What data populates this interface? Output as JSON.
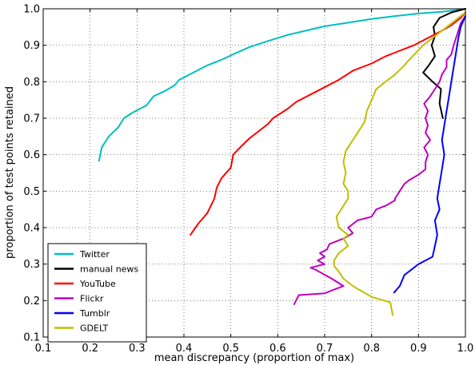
{
  "chart_data": {
    "type": "line",
    "title": "",
    "xlabel": "mean discrepancy (proportion of max)",
    "ylabel": "proportion of test points retained",
    "xlim": [
      0.1,
      1.0
    ],
    "ylim": [
      0.1,
      1.0
    ],
    "xticks": [
      0.1,
      0.2,
      0.3,
      0.4,
      0.5,
      0.6,
      0.7,
      0.8,
      0.9,
      1.0
    ],
    "yticks": [
      0.1,
      0.2,
      0.3,
      0.4,
      0.5,
      0.6,
      0.7,
      0.8,
      0.9,
      1.0
    ],
    "xtick_labels": [
      "0.1",
      "0.2",
      "0.3",
      "0.4",
      "0.5",
      "0.6",
      "0.7",
      "0.8",
      "0.9",
      "1.0"
    ],
    "ytick_labels": [
      "0.1",
      "0.2",
      "0.3",
      "0.4",
      "0.5",
      "0.6",
      "0.7",
      "0.8",
      "0.9",
      "1.0"
    ],
    "grid": true,
    "legend_position": "lower-left",
    "series": [
      {
        "name": "Twitter",
        "color": "#00bfbf",
        "points": [
          [
            0.219,
            0.583
          ],
          [
            0.225,
            0.62
          ],
          [
            0.24,
            0.65
          ],
          [
            0.26,
            0.675
          ],
          [
            0.272,
            0.7
          ],
          [
            0.29,
            0.715
          ],
          [
            0.32,
            0.735
          ],
          [
            0.335,
            0.76
          ],
          [
            0.36,
            0.775
          ],
          [
            0.38,
            0.79
          ],
          [
            0.39,
            0.805
          ],
          [
            0.42,
            0.825
          ],
          [
            0.45,
            0.845
          ],
          [
            0.48,
            0.86
          ],
          [
            0.51,
            0.878
          ],
          [
            0.54,
            0.895
          ],
          [
            0.58,
            0.912
          ],
          [
            0.62,
            0.928
          ],
          [
            0.66,
            0.94
          ],
          [
            0.7,
            0.952
          ],
          [
            0.75,
            0.962
          ],
          [
            0.8,
            0.972
          ],
          [
            0.85,
            0.98
          ],
          [
            0.9,
            0.987
          ],
          [
            0.95,
            0.992
          ],
          [
            0.98,
            0.996
          ],
          [
            1.0,
            1.0
          ]
        ]
      },
      {
        "name": "manual news",
        "color": "#000000",
        "points": [
          [
            0.952,
            0.7
          ],
          [
            0.945,
            0.74
          ],
          [
            0.948,
            0.78
          ],
          [
            0.93,
            0.8
          ],
          [
            0.91,
            0.825
          ],
          [
            0.922,
            0.845
          ],
          [
            0.935,
            0.87
          ],
          [
            0.928,
            0.9
          ],
          [
            0.935,
            0.925
          ],
          [
            0.932,
            0.95
          ],
          [
            0.945,
            0.975
          ],
          [
            0.97,
            0.99
          ],
          [
            1.0,
            1.0
          ]
        ]
      },
      {
        "name": "YouTube",
        "color": "#ff0000",
        "points": [
          [
            0.414,
            0.38
          ],
          [
            0.43,
            0.41
          ],
          [
            0.45,
            0.44
          ],
          [
            0.465,
            0.48
          ],
          [
            0.47,
            0.51
          ],
          [
            0.48,
            0.535
          ],
          [
            0.5,
            0.565
          ],
          [
            0.505,
            0.6
          ],
          [
            0.52,
            0.62
          ],
          [
            0.54,
            0.645
          ],
          [
            0.56,
            0.665
          ],
          [
            0.58,
            0.685
          ],
          [
            0.59,
            0.7
          ],
          [
            0.62,
            0.725
          ],
          [
            0.64,
            0.745
          ],
          [
            0.67,
            0.765
          ],
          [
            0.7,
            0.785
          ],
          [
            0.73,
            0.805
          ],
          [
            0.76,
            0.83
          ],
          [
            0.8,
            0.85
          ],
          [
            0.83,
            0.87
          ],
          [
            0.86,
            0.885
          ],
          [
            0.89,
            0.9
          ],
          [
            0.92,
            0.92
          ],
          [
            0.95,
            0.94
          ],
          [
            0.97,
            0.955
          ],
          [
            0.99,
            0.975
          ],
          [
            1.0,
            0.99
          ]
        ]
      },
      {
        "name": "Flickr",
        "color": "#bf00bf",
        "points": [
          [
            0.635,
            0.19
          ],
          [
            0.645,
            0.215
          ],
          [
            0.7,
            0.22
          ],
          [
            0.74,
            0.24
          ],
          [
            0.715,
            0.26
          ],
          [
            0.68,
            0.285
          ],
          [
            0.67,
            0.29
          ],
          [
            0.7,
            0.3
          ],
          [
            0.685,
            0.31
          ],
          [
            0.7,
            0.32
          ],
          [
            0.69,
            0.33
          ],
          [
            0.705,
            0.34
          ],
          [
            0.71,
            0.355
          ],
          [
            0.74,
            0.37
          ],
          [
            0.76,
            0.385
          ],
          [
            0.75,
            0.4
          ],
          [
            0.77,
            0.42
          ],
          [
            0.8,
            0.43
          ],
          [
            0.81,
            0.45
          ],
          [
            0.83,
            0.46
          ],
          [
            0.85,
            0.475
          ],
          [
            0.85,
            0.48
          ],
          [
            0.86,
            0.5
          ],
          [
            0.87,
            0.52
          ],
          [
            0.88,
            0.53
          ],
          [
            0.9,
            0.545
          ],
          [
            0.915,
            0.56
          ],
          [
            0.915,
            0.58
          ],
          [
            0.92,
            0.6
          ],
          [
            0.912,
            0.62
          ],
          [
            0.925,
            0.64
          ],
          [
            0.915,
            0.66
          ],
          [
            0.92,
            0.68
          ],
          [
            0.915,
            0.7
          ],
          [
            0.92,
            0.72
          ],
          [
            0.912,
            0.74
          ],
          [
            0.925,
            0.76
          ],
          [
            0.935,
            0.78
          ],
          [
            0.945,
            0.8
          ],
          [
            0.95,
            0.82
          ],
          [
            0.96,
            0.84
          ],
          [
            0.96,
            0.86
          ],
          [
            0.97,
            0.875
          ],
          [
            0.975,
            0.9
          ],
          [
            0.98,
            0.92
          ],
          [
            0.985,
            0.94
          ],
          [
            0.99,
            0.96
          ],
          [
            1.0,
            0.98
          ]
        ]
      },
      {
        "name": "Tumblr",
        "color": "#0000ff",
        "points": [
          [
            0.848,
            0.222
          ],
          [
            0.86,
            0.24
          ],
          [
            0.87,
            0.27
          ],
          [
            0.9,
            0.3
          ],
          [
            0.93,
            0.32
          ],
          [
            0.935,
            0.35
          ],
          [
            0.94,
            0.38
          ],
          [
            0.935,
            0.42
          ],
          [
            0.945,
            0.45
          ],
          [
            0.94,
            0.48
          ],
          [
            0.945,
            0.52
          ],
          [
            0.95,
            0.56
          ],
          [
            0.955,
            0.6
          ],
          [
            0.95,
            0.64
          ],
          [
            0.955,
            0.68
          ],
          [
            0.96,
            0.72
          ],
          [
            0.965,
            0.76
          ],
          [
            0.97,
            0.8
          ],
          [
            0.975,
            0.84
          ],
          [
            0.98,
            0.88
          ],
          [
            0.985,
            0.92
          ],
          [
            0.99,
            0.95
          ],
          [
            1.0,
            0.98
          ]
        ]
      },
      {
        "name": "GDELT",
        "color": "#bfbf00",
        "points": [
          [
            0.845,
            0.16
          ],
          [
            0.84,
            0.195
          ],
          [
            0.8,
            0.21
          ],
          [
            0.76,
            0.24
          ],
          [
            0.74,
            0.26
          ],
          [
            0.73,
            0.28
          ],
          [
            0.72,
            0.295
          ],
          [
            0.72,
            0.31
          ],
          [
            0.73,
            0.33
          ],
          [
            0.75,
            0.35
          ],
          [
            0.74,
            0.37
          ],
          [
            0.75,
            0.38
          ],
          [
            0.74,
            0.39
          ],
          [
            0.73,
            0.4
          ],
          [
            0.725,
            0.43
          ],
          [
            0.74,
            0.46
          ],
          [
            0.75,
            0.48
          ],
          [
            0.75,
            0.5
          ],
          [
            0.74,
            0.52
          ],
          [
            0.745,
            0.55
          ],
          [
            0.74,
            0.58
          ],
          [
            0.745,
            0.61
          ],
          [
            0.76,
            0.64
          ],
          [
            0.77,
            0.66
          ],
          [
            0.785,
            0.69
          ],
          [
            0.79,
            0.72
          ],
          [
            0.8,
            0.75
          ],
          [
            0.81,
            0.78
          ],
          [
            0.83,
            0.8
          ],
          [
            0.85,
            0.82
          ],
          [
            0.87,
            0.845
          ],
          [
            0.88,
            0.86
          ],
          [
            0.895,
            0.88
          ],
          [
            0.91,
            0.9
          ],
          [
            0.93,
            0.92
          ],
          [
            0.95,
            0.94
          ],
          [
            0.97,
            0.96
          ],
          [
            0.99,
            0.98
          ],
          [
            1.0,
            0.99
          ]
        ]
      }
    ]
  }
}
